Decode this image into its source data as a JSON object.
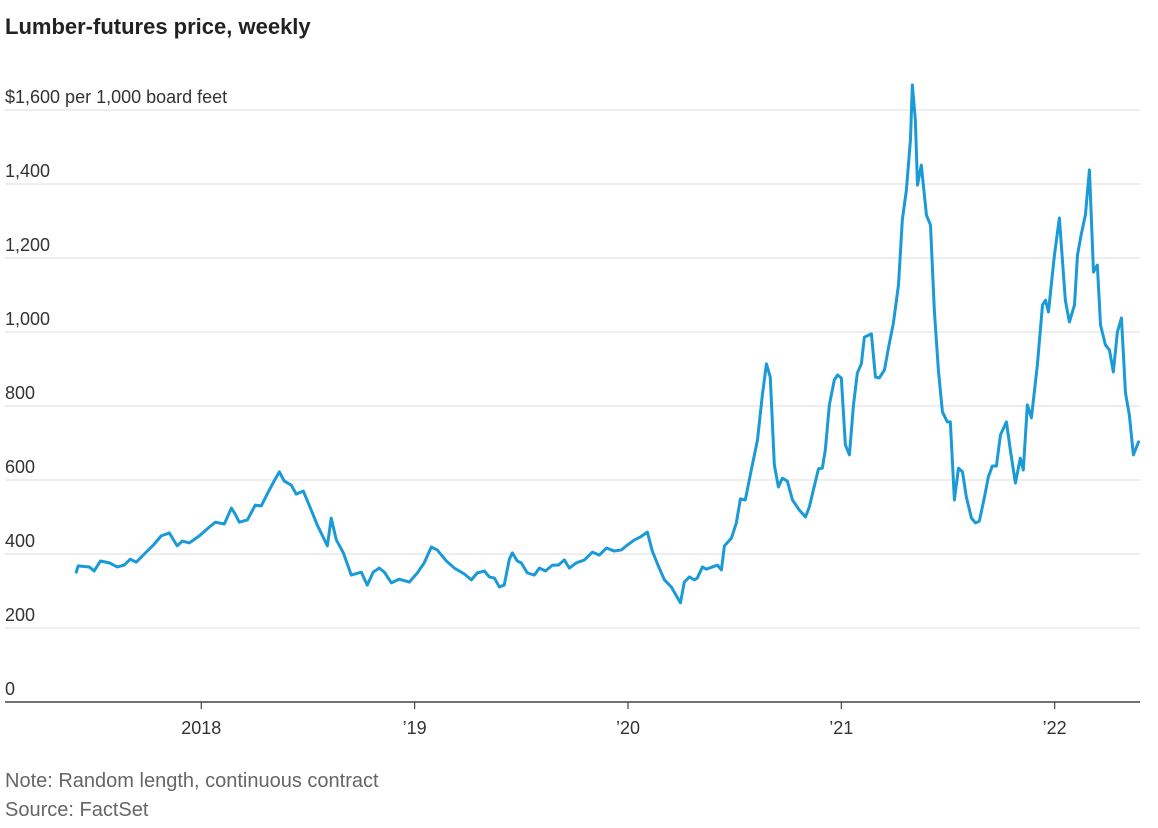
{
  "chart_data": {
    "type": "line",
    "title": "Lumber-futures price, weekly",
    "note": "Note: Random length, continuous contract",
    "source": "Source: FactSet",
    "color": "#1a9ad6",
    "grid": true,
    "xlim": [
      2017.08,
      2022.4
    ],
    "xticks": [
      2018,
      {
        "value": 2019,
        "label": "’19"
      },
      {
        "value": 2020,
        "label": "’20"
      },
      {
        "value": 2021,
        "label": "’21"
      },
      {
        "value": 2022,
        "label": "’22"
      }
    ],
    "ylim": [
      0,
      1600
    ],
    "yticks": [
      0,
      200,
      400,
      600,
      800,
      {
        "value": 1000,
        "label": "1,000"
      },
      {
        "value": 1200,
        "label": "1,200"
      },
      {
        "value": 1400,
        "label": "1,400"
      },
      {
        "value": 1600,
        "label": "$1,600 per 1,000 board feet"
      }
    ],
    "x": [
      2017.414,
      2017.423,
      2017.475,
      2017.498,
      2017.527,
      2017.569,
      2017.606,
      2017.639,
      2017.667,
      2017.695,
      2017.733,
      2017.78,
      2017.812,
      2017.85,
      2017.887,
      2017.911,
      2017.944,
      2017.991,
      2018.038,
      2018.066,
      2018.108,
      2018.141,
      2018.159,
      2018.178,
      2018.216,
      2018.253,
      2018.281,
      2018.319,
      2018.347,
      2018.366,
      2018.389,
      2018.422,
      2018.445,
      2018.478,
      2018.506,
      2018.544,
      2018.591,
      2018.609,
      2018.633,
      2018.666,
      2018.703,
      2018.75,
      2018.778,
      2018.806,
      2018.834,
      2018.858,
      2018.891,
      2018.928,
      2018.975,
      2019.013,
      2019.045,
      2019.078,
      2019.106,
      2019.149,
      2019.186,
      2019.233,
      2019.266,
      2019.294,
      2019.327,
      2019.35,
      2019.374,
      2019.397,
      2019.42,
      2019.444,
      2019.458,
      2019.481,
      2019.5,
      2019.528,
      2019.561,
      2019.585,
      2019.613,
      2019.646,
      2019.674,
      2019.702,
      2019.725,
      2019.758,
      2019.796,
      2019.833,
      2019.866,
      2019.899,
      2019.936,
      2019.969,
      2019.997,
      2020.03,
      2020.058,
      2020.091,
      2020.114,
      2020.142,
      2020.171,
      2020.203,
      2020.222,
      2020.246,
      2020.264,
      2020.288,
      2020.311,
      2020.325,
      2020.349,
      2020.367,
      2020.396,
      2020.419,
      2020.438,
      2020.452,
      2020.485,
      2020.508,
      2020.527,
      2020.55,
      2020.578,
      2020.607,
      2020.63,
      2020.649,
      2020.667,
      2020.686,
      2020.705,
      2020.724,
      2020.747,
      2020.771,
      2020.803,
      2020.832,
      2020.85,
      2020.869,
      2020.893,
      2020.911,
      2020.925,
      2020.944,
      2020.967,
      2020.982,
      2021.0,
      2021.019,
      2021.038,
      2021.057,
      2021.075,
      2021.094,
      2021.108,
      2021.141,
      2021.16,
      2021.178,
      2021.202,
      2021.221,
      2021.244,
      2021.268,
      2021.286,
      2021.305,
      2021.324,
      2021.333,
      2021.347,
      2021.357,
      2021.375,
      2021.399,
      2021.418,
      2021.436,
      2021.455,
      2021.474,
      2021.497,
      2021.511,
      2021.53,
      2021.549,
      2021.568,
      2021.586,
      2021.61,
      2021.629,
      2021.647,
      2021.671,
      2021.689,
      2021.708,
      2021.727,
      2021.746,
      2021.774,
      2021.793,
      2021.816,
      2021.839,
      2021.853,
      2021.872,
      2021.891,
      2021.919,
      2021.943,
      2021.957,
      2021.971,
      2021.985,
      2021.999,
      2022.022,
      2022.05,
      2022.069,
      2022.093,
      2022.107,
      2022.125,
      2022.144,
      2022.163,
      2022.182,
      2022.2,
      2022.215,
      2022.238,
      2022.257,
      2022.275,
      2022.294,
      2022.313,
      2022.332,
      2022.35,
      2022.369,
      2022.393
    ],
    "values": [
      351,
      368,
      365,
      354,
      381,
      376,
      365,
      370,
      386,
      378,
      400,
      427,
      449,
      457,
      422,
      435,
      430,
      449,
      473,
      486,
      481,
      524,
      508,
      486,
      492,
      532,
      530,
      573,
      603,
      622,
      597,
      586,
      562,
      570,
      532,
      478,
      422,
      497,
      438,
      403,
      343,
      351,
      316,
      351,
      362,
      351,
      322,
      332,
      324,
      349,
      376,
      419,
      411,
      381,
      362,
      346,
      330,
      349,
      354,
      338,
      335,
      311,
      316,
      386,
      403,
      381,
      376,
      349,
      343,
      362,
      354,
      370,
      370,
      384,
      362,
      376,
      384,
      405,
      397,
      416,
      408,
      411,
      424,
      438,
      446,
      459,
      408,
      368,
      330,
      311,
      292,
      268,
      324,
      338,
      330,
      335,
      365,
      359,
      365,
      370,
      357,
      422,
      443,
      484,
      549,
      546,
      627,
      708,
      830,
      914,
      878,
      641,
      581,
      605,
      597,
      546,
      519,
      500,
      527,
      573,
      630,
      632,
      681,
      803,
      870,
      884,
      876,
      695,
      668,
      803,
      889,
      914,
      986,
      995,
      878,
      876,
      897,
      957,
      1024,
      1127,
      1303,
      1384,
      1519,
      1668,
      1573,
      1397,
      1451,
      1316,
      1289,
      1059,
      897,
      784,
      757,
      757,
      546,
      632,
      622,
      554,
      497,
      484,
      489,
      554,
      608,
      638,
      638,
      722,
      757,
      678,
      592,
      659,
      627,
      803,
      768,
      911,
      1073,
      1086,
      1054,
      1132,
      1208,
      1308,
      1086,
      1027,
      1073,
      1208,
      1265,
      1316,
      1438,
      1162,
      1181,
      1019,
      965,
      951,
      892,
      1000,
      1038,
      835,
      776,
      668,
      703
    ]
  }
}
